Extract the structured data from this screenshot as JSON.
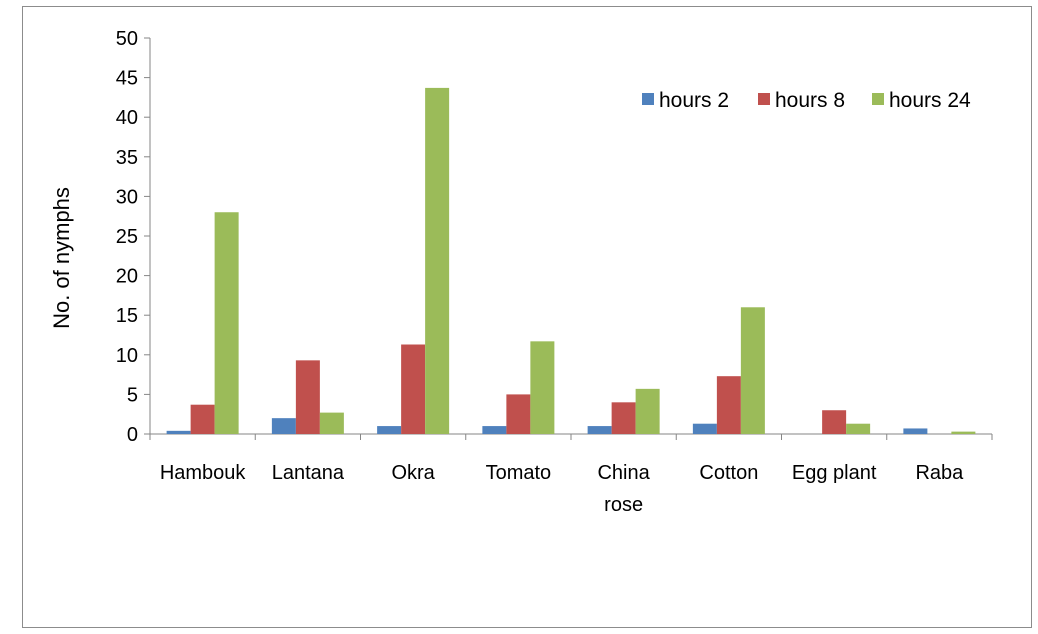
{
  "chart_data": {
    "type": "bar",
    "title": "",
    "xlabel": "",
    "ylabel": "No. of nymphs",
    "ylim": [
      0,
      50
    ],
    "yticks": [
      0,
      5,
      10,
      15,
      20,
      25,
      30,
      35,
      40,
      45,
      50
    ],
    "categories": [
      [
        "Hambouk"
      ],
      [
        "Lantana"
      ],
      [
        "Okra"
      ],
      [
        "Tomato"
      ],
      [
        "China",
        "rose"
      ],
      [
        "Cotton"
      ],
      [
        "Egg plant"
      ],
      [
        "Raba"
      ]
    ],
    "series": [
      {
        "name": "hours 2",
        "color": "#4f81bd",
        "values": [
          0.4,
          2.0,
          1.0,
          1.0,
          1.0,
          1.3,
          0.0,
          0.7
        ]
      },
      {
        "name": "hours 8",
        "color": "#c0504d",
        "values": [
          3.7,
          9.3,
          11.3,
          5.0,
          4.0,
          7.3,
          3.0,
          0.0
        ]
      },
      {
        "name": "hours 24",
        "color": "#9bbb59",
        "values": [
          28.0,
          2.7,
          43.7,
          11.7,
          5.7,
          16.0,
          1.3,
          0.3
        ]
      }
    ],
    "legend_position": "top-right",
    "grid": false
  }
}
